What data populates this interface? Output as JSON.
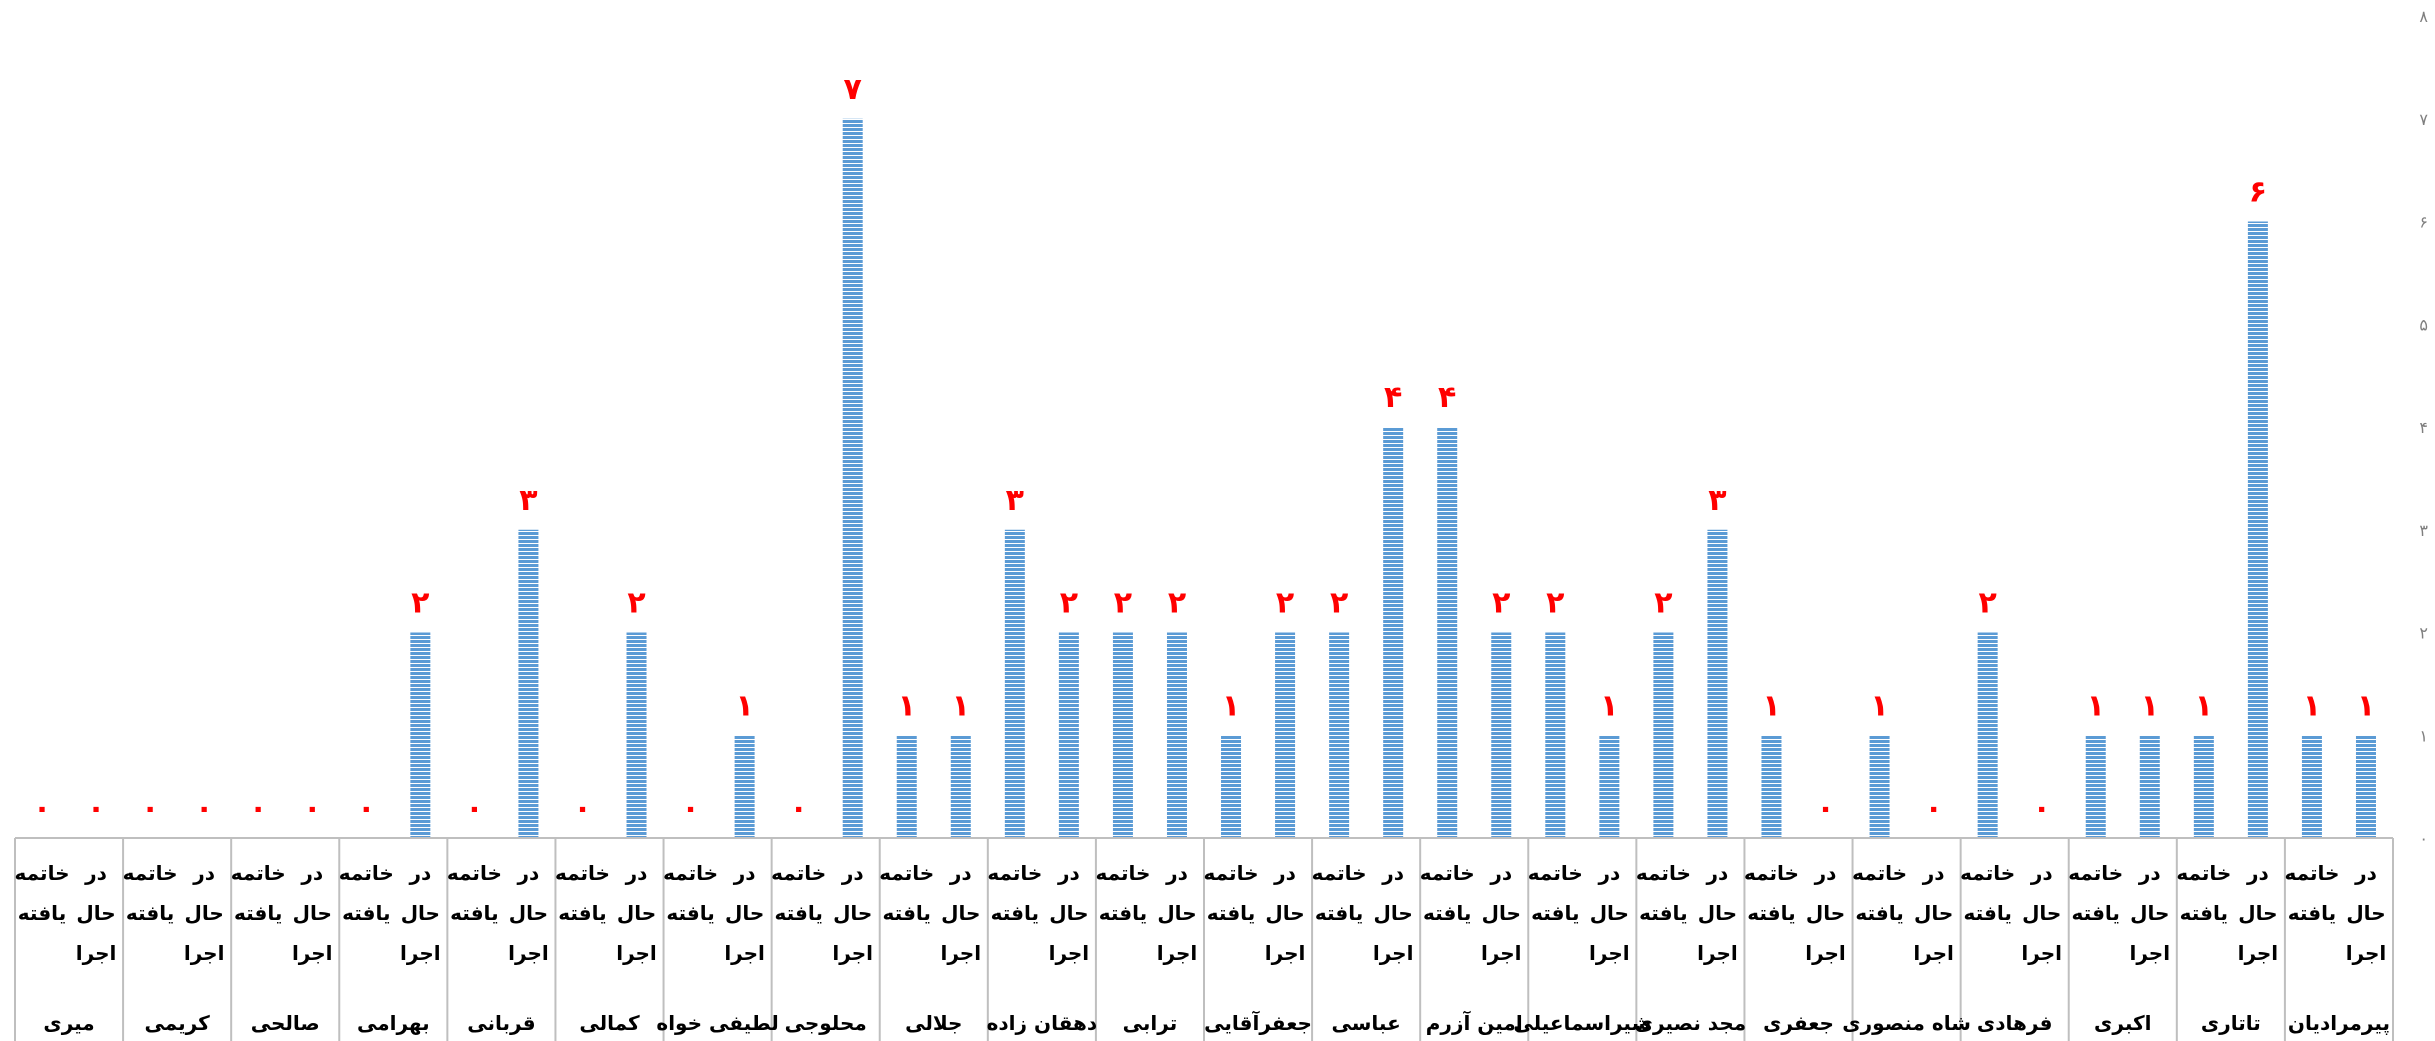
{
  "chart_data": {
    "type": "bar",
    "colors": {
      "bar": "#5b9bd5",
      "bar_stripe": "#ffffff",
      "data_label": "#ff0000",
      "axis": "#bfbfbf",
      "tick_text": "#7f7f7f"
    },
    "ylim": [
      0,
      8
    ],
    "y_ticks": [
      "۰",
      "۱",
      "۲",
      "۳",
      "۴",
      "۵",
      "۶",
      "۷",
      "۸"
    ],
    "status_labels": {
      "done": "خاتمه یافته",
      "in_progress": "در حال اجرا"
    },
    "groups": [
      {
        "name": "پیرمرادیان",
        "values": {
          "in_progress": 1,
          "done": 1
        },
        "value_labels": {
          "in_progress": "۱",
          "done": "۱"
        }
      },
      {
        "name": "تاتاری",
        "values": {
          "in_progress": 6,
          "done": 1
        },
        "value_labels": {
          "in_progress": "۶",
          "done": "۱"
        }
      },
      {
        "name": "اکبری",
        "values": {
          "in_progress": 1,
          "done": 1
        },
        "value_labels": {
          "in_progress": "۱",
          "done": "۱"
        }
      },
      {
        "name": "فرهادی",
        "values": {
          "in_progress": 0,
          "done": 2
        },
        "value_labels": {
          "in_progress": "۰",
          "done": "۲"
        }
      },
      {
        "name": "شاه منصوری",
        "values": {
          "in_progress": 0,
          "done": 1
        },
        "value_labels": {
          "in_progress": "۰",
          "done": "۱"
        }
      },
      {
        "name": "جعفری",
        "values": {
          "in_progress": 0,
          "done": 1
        },
        "value_labels": {
          "in_progress": "۰",
          "done": "۱"
        }
      },
      {
        "name": "مجد نصیری",
        "values": {
          "in_progress": 3,
          "done": 2
        },
        "value_labels": {
          "in_progress": "۳",
          "done": "۲"
        }
      },
      {
        "name": "شیراسماعیلی",
        "values": {
          "in_progress": 1,
          "done": 2
        },
        "value_labels": {
          "in_progress": "۱",
          "done": "۲"
        }
      },
      {
        "name": "امین آزرم",
        "values": {
          "in_progress": 2,
          "done": 4
        },
        "value_labels": {
          "in_progress": "۲",
          "done": "۴"
        }
      },
      {
        "name": "عباسی",
        "values": {
          "in_progress": 4,
          "done": 2
        },
        "value_labels": {
          "in_progress": "۴",
          "done": "۲"
        }
      },
      {
        "name": "جعفرآقایی",
        "values": {
          "in_progress": 2,
          "done": 1
        },
        "value_labels": {
          "in_progress": "۲",
          "done": "۱"
        }
      },
      {
        "name": "ترابی",
        "values": {
          "in_progress": 2,
          "done": 2
        },
        "value_labels": {
          "in_progress": "۲",
          "done": "۲"
        }
      },
      {
        "name": "دهقان زاده",
        "values": {
          "in_progress": 2,
          "done": 3
        },
        "value_labels": {
          "in_progress": "۲",
          "done": "۳"
        }
      },
      {
        "name": "جلالی",
        "values": {
          "in_progress": 1,
          "done": 1
        },
        "value_labels": {
          "in_progress": "۱",
          "done": "۱"
        }
      },
      {
        "name": "محلوجی",
        "values": {
          "in_progress": 7,
          "done": 0
        },
        "value_labels": {
          "in_progress": "۷",
          "done": "۰"
        }
      },
      {
        "name": "لطیفی خواه",
        "values": {
          "in_progress": 1,
          "done": 0
        },
        "value_labels": {
          "in_progress": "۱",
          "done": "۰"
        }
      },
      {
        "name": "کمالی",
        "values": {
          "in_progress": 2,
          "done": 0
        },
        "value_labels": {
          "in_progress": "۲",
          "done": "۰"
        }
      },
      {
        "name": "قربانی",
        "values": {
          "in_progress": 3,
          "done": 0
        },
        "value_labels": {
          "in_progress": "۳",
          "done": "۰"
        }
      },
      {
        "name": "بهرامی",
        "values": {
          "in_progress": 2,
          "done": 0
        },
        "value_labels": {
          "in_progress": "۲",
          "done": "۰"
        }
      },
      {
        "name": "صالحی",
        "values": {
          "in_progress": 0,
          "done": 0
        },
        "value_labels": {
          "in_progress": "۰",
          "done": "۰"
        }
      },
      {
        "name": "کریمی",
        "values": {
          "in_progress": 0,
          "done": 0
        },
        "value_labels": {
          "in_progress": "۰",
          "done": "۰"
        }
      },
      {
        "name": "میری",
        "values": {
          "in_progress": 0,
          "done": 0
        },
        "value_labels": {
          "in_progress": "۰",
          "done": "۰"
        }
      }
    ]
  }
}
